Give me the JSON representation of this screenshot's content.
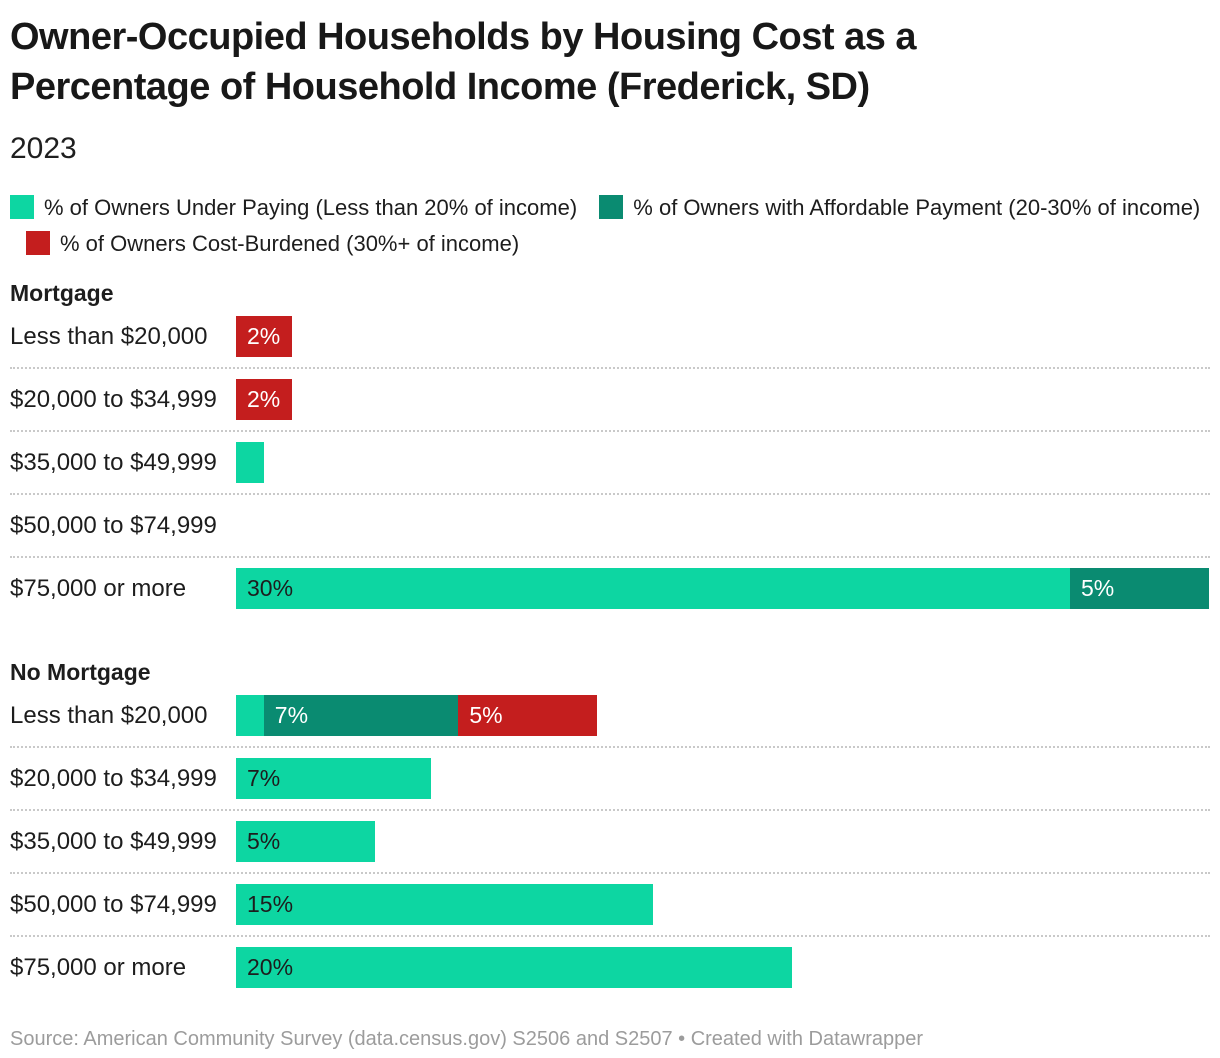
{
  "title": "Owner-Occupied Households by Housing Cost as a Percentage of Household Income (Frederick, SD)",
  "subtitle": "2023",
  "footer": {
    "source_text": "Source: American Community Survey (data.census.gov) S2506 and S2507",
    "separator": " • ",
    "credit_text": "Created with Datawrapper"
  },
  "chart_data": {
    "type": "bar",
    "orientation": "horizontal",
    "stacked": true,
    "unit": "%",
    "xlim": [
      0,
      35
    ],
    "grid": false,
    "legend_position": "top",
    "series": [
      {
        "name": "% of Owners Under Paying (Less than 20% of income)",
        "color": "#0dd6a2",
        "label_text_color": "#1d1d1d"
      },
      {
        "name": "% of Owners with Affordable Payment (20-30% of income)",
        "color": "#0a8b71",
        "label_text_color": "#ffffff"
      },
      {
        "name": "% of Owners Cost-Burdened (30%+ of income)",
        "color": "#c41e1e",
        "label_text_color": "#ffffff"
      }
    ],
    "groups": [
      {
        "name": "Mortgage",
        "rows": [
          {
            "category": "Less than $20,000",
            "segments": [
              {
                "series": 2,
                "value": 2,
                "label": "2%"
              }
            ]
          },
          {
            "category": "$20,000 to $34,999",
            "segments": [
              {
                "series": 2,
                "value": 2,
                "label": "2%"
              }
            ]
          },
          {
            "category": "$35,000 to $49,999",
            "segments": [
              {
                "series": 0,
                "value": 1,
                "label": ""
              }
            ]
          },
          {
            "category": "$50,000 to $74,999",
            "segments": []
          },
          {
            "category": "$75,000 or more",
            "segments": [
              {
                "series": 0,
                "value": 30,
                "label": "30%"
              },
              {
                "series": 1,
                "value": 5,
                "label": "5%"
              }
            ]
          }
        ]
      },
      {
        "name": "No Mortgage",
        "rows": [
          {
            "category": "Less than $20,000",
            "segments": [
              {
                "series": 0,
                "value": 1,
                "label": ""
              },
              {
                "series": 1,
                "value": 7,
                "label": "7%"
              },
              {
                "series": 2,
                "value": 5,
                "label": "5%"
              }
            ]
          },
          {
            "category": "$20,000 to $34,999",
            "segments": [
              {
                "series": 0,
                "value": 7,
                "label": "7%"
              }
            ]
          },
          {
            "category": "$35,000 to $49,999",
            "segments": [
              {
                "series": 0,
                "value": 5,
                "label": "5%"
              }
            ]
          },
          {
            "category": "$50,000 to $74,999",
            "segments": [
              {
                "series": 0,
                "value": 15,
                "label": "15%"
              }
            ]
          },
          {
            "category": "$75,000 or more",
            "segments": [
              {
                "series": 0,
                "value": 20,
                "label": "20%"
              }
            ]
          }
        ]
      }
    ]
  }
}
